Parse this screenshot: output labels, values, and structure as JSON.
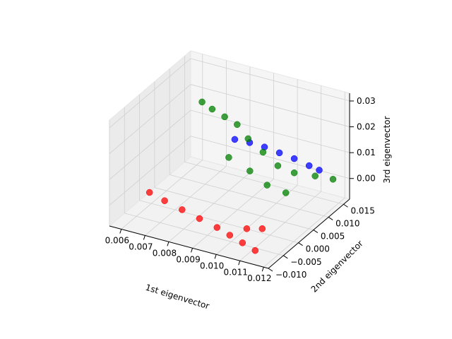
{
  "chart_data": {
    "type": "scatter",
    "projection": "3d",
    "xlabel": "1st eigenvector",
    "ylabel": "2nd eigenvector",
    "zlabel": "3rd eigenvector",
    "xlim": [
      0.0055,
      0.0122
    ],
    "ylim": [
      -0.01,
      0.017
    ],
    "zlim": [
      -0.008,
      0.033
    ],
    "x_ticks": [
      "0.006",
      "0.007",
      "0.008",
      "0.009",
      "0.010",
      "0.011",
      "0.012"
    ],
    "y_ticks": [
      "−0.010",
      "−0.005",
      "0.000",
      "0.005",
      "0.010",
      "0.015"
    ],
    "z_ticks": [
      "0.00",
      "0.01",
      "0.02",
      "0.03"
    ],
    "grid": true,
    "legend": "none",
    "series": [
      {
        "color": "#0000ff",
        "points": [
          [
            0.0085,
            0.008,
            0.015
          ],
          [
            0.009,
            0.009,
            0.014
          ],
          [
            0.0095,
            0.01,
            0.0125
          ],
          [
            0.01,
            0.011,
            0.0105
          ],
          [
            0.0105,
            0.012,
            0.0085
          ],
          [
            0.011,
            0.013,
            0.006
          ],
          [
            0.0113,
            0.014,
            0.004
          ]
        ]
      },
      {
        "color": "#008000",
        "points": [
          [
            0.0075,
            0.005,
            0.03
          ],
          [
            0.0078,
            0.006,
            0.027
          ],
          [
            0.0082,
            0.007,
            0.024
          ],
          [
            0.0086,
            0.008,
            0.021
          ],
          [
            0.009,
            0.0085,
            0.016
          ],
          [
            0.0095,
            0.0095,
            0.011
          ],
          [
            0.01,
            0.0105,
            0.006
          ],
          [
            0.0105,
            0.012,
            0.003
          ],
          [
            0.011,
            0.015,
            0.0
          ],
          [
            0.0115,
            0.017,
            -0.002
          ],
          [
            0.0085,
            0.006,
            0.01
          ],
          [
            0.0092,
            0.0075,
            0.005
          ],
          [
            0.0098,
            0.0085,
            0.0
          ],
          [
            0.0104,
            0.01,
            -0.003
          ]
        ]
      },
      {
        "color": "#ff0000",
        "points": [
          [
            0.0063,
            -0.003,
            0.0
          ],
          [
            0.007,
            -0.0035,
            -0.001
          ],
          [
            0.0078,
            -0.004,
            -0.002
          ],
          [
            0.0086,
            -0.0045,
            -0.003
          ],
          [
            0.0094,
            -0.005,
            -0.004
          ],
          [
            0.01,
            -0.0055,
            -0.005
          ],
          [
            0.0106,
            -0.006,
            -0.006
          ],
          [
            0.0112,
            -0.0065,
            -0.007
          ],
          [
            0.0104,
            -0.003,
            -0.004
          ],
          [
            0.0108,
            -0.001,
            -0.005
          ]
        ]
      }
    ]
  }
}
